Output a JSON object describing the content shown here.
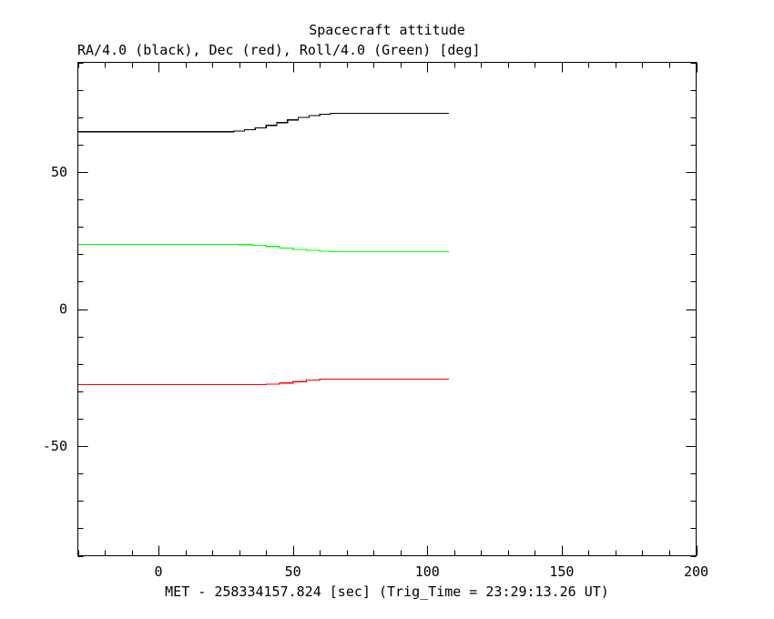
{
  "chart_data": {
    "type": "line",
    "title": "Spacecraft attitude",
    "ylabel": "RA/4.0 (black), Dec (red), Roll/4.0 (Green) [deg]",
    "xlabel": "MET - 258334157.824 [sec] (Trig_Time = 23:29:13.26 UT)",
    "xlim": [
      -30,
      200
    ],
    "ylim": [
      -90,
      90
    ],
    "xticks": [
      0,
      50,
      100,
      150,
      200
    ],
    "xtick_labels": [
      "0",
      "50",
      "100",
      "150",
      "200"
    ],
    "yticks": [
      -50,
      0,
      50
    ],
    "ytick_labels": [
      "-50",
      "0",
      "50"
    ],
    "x_minor_step": 10,
    "y_minor_step": 10,
    "step_style": "post",
    "series": [
      {
        "color": "#000000",
        "x": [
          -30,
          28,
          32,
          36,
          40,
          44,
          48,
          52,
          56,
          60,
          64,
          108
        ],
        "y": [
          64.7,
          64.9,
          65.4,
          66.1,
          67.0,
          68.0,
          69.0,
          69.9,
          70.6,
          71.1,
          71.4,
          71.4
        ]
      },
      {
        "color": "#00ff00",
        "x": [
          -30,
          30,
          35,
          40,
          45,
          50,
          55,
          60,
          64,
          108
        ],
        "y": [
          23.6,
          23.5,
          23.2,
          22.8,
          22.3,
          21.8,
          21.4,
          21.1,
          20.9,
          20.9
        ]
      },
      {
        "color": "#ff0000",
        "x": [
          -30,
          40,
          45,
          50,
          55,
          60,
          108
        ],
        "y": [
          -27.6,
          -27.4,
          -27.0,
          -26.5,
          -25.9,
          -25.6,
          -25.6
        ]
      }
    ]
  }
}
